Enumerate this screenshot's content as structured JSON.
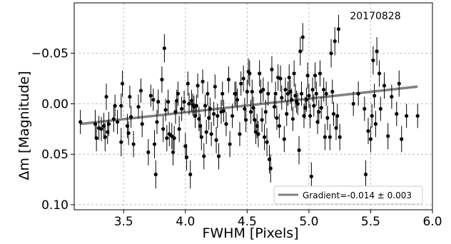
{
  "chart_data": {
    "type": "scatter",
    "xlabel": "FWHM [Pixels]",
    "ylabel": "Δm [Magnitude]",
    "xlim": [
      3.1,
      6.0
    ],
    "ylim": [
      0.105,
      -0.1
    ],
    "y_inverted": true,
    "grid": true,
    "xticks": [
      3.5,
      4.0,
      4.5,
      5.0,
      5.5,
      6.0
    ],
    "xtick_labels": [
      "3.5",
      "4.0",
      "4.5",
      "5.0",
      "5.5",
      "6.0"
    ],
    "yticks": [
      -0.05,
      0.0,
      0.05,
      0.1
    ],
    "ytick_labels": [
      "−0.05",
      "0.00",
      "0.05",
      "0.10"
    ],
    "annotation": "20170828",
    "legend": {
      "placement": "lower-right",
      "entries": [
        {
          "label": "Gradient=-0.014 ± 0.003",
          "color": "#808080"
        }
      ]
    },
    "fit_line": {
      "x": [
        3.15,
        5.88
      ],
      "y": [
        0.02,
        -0.017
      ],
      "color": "#808080"
    },
    "series": [
      {
        "color": "#000000",
        "points": [
          {
            "x": 3.15,
            "y": 0.018,
            "err": 0.012
          },
          {
            "x": 3.27,
            "y": 0.02,
            "err": 0.014
          },
          {
            "x": 3.28,
            "y": 0.034,
            "err": 0.013
          },
          {
            "x": 3.3,
            "y": 0.024,
            "err": 0.012
          },
          {
            "x": 3.32,
            "y": 0.025,
            "err": 0.012
          },
          {
            "x": 3.34,
            "y": 0.022,
            "err": 0.013
          },
          {
            "x": 3.35,
            "y": 0.033,
            "err": 0.014
          },
          {
            "x": 3.36,
            "y": -0.007,
            "err": 0.013
          },
          {
            "x": 3.37,
            "y": 0.028,
            "err": 0.012
          },
          {
            "x": 3.38,
            "y": 0.02,
            "err": 0.012
          },
          {
            "x": 3.42,
            "y": 0.015,
            "err": 0.013
          },
          {
            "x": 3.43,
            "y": 0.002,
            "err": 0.011
          },
          {
            "x": 3.45,
            "y": 0.018,
            "err": 0.012
          },
          {
            "x": 3.48,
            "y": 0.038,
            "err": 0.014
          },
          {
            "x": 3.48,
            "y": 0.002,
            "err": 0.012
          },
          {
            "x": 3.49,
            "y": -0.02,
            "err": 0.013
          },
          {
            "x": 3.53,
            "y": 0.022,
            "err": 0.012
          },
          {
            "x": 3.54,
            "y": 0.029,
            "err": 0.012
          },
          {
            "x": 3.55,
            "y": -0.007,
            "err": 0.011
          },
          {
            "x": 3.56,
            "y": 0.013,
            "err": 0.011
          },
          {
            "x": 3.58,
            "y": 0.04,
            "err": 0.013
          },
          {
            "x": 3.62,
            "y": 0.003,
            "err": 0.012
          },
          {
            "x": 3.64,
            "y": -0.013,
            "err": 0.012
          },
          {
            "x": 3.65,
            "y": 0.02,
            "err": 0.013
          },
          {
            "x": 3.7,
            "y": 0.048,
            "err": 0.013
          },
          {
            "x": 3.72,
            "y": -0.008,
            "err": 0.011
          },
          {
            "x": 3.74,
            "y": -0.004,
            "err": 0.011
          },
          {
            "x": 3.75,
            "y": 0.04,
            "err": 0.014
          },
          {
            "x": 3.76,
            "y": 0.07,
            "err": 0.014
          },
          {
            "x": 3.77,
            "y": 0.018,
            "err": 0.012
          },
          {
            "x": 3.78,
            "y": -0.002,
            "err": 0.012
          },
          {
            "x": 3.81,
            "y": -0.024,
            "err": 0.013
          },
          {
            "x": 3.82,
            "y": 0.025,
            "err": 0.013
          },
          {
            "x": 3.83,
            "y": -0.055,
            "err": 0.014
          },
          {
            "x": 3.84,
            "y": 0.006,
            "err": 0.011
          },
          {
            "x": 3.85,
            "y": 0.034,
            "err": 0.013
          },
          {
            "x": 3.86,
            "y": -0.002,
            "err": 0.012
          },
          {
            "x": 3.87,
            "y": 0.03,
            "err": 0.012
          },
          {
            "x": 3.89,
            "y": 0.032,
            "err": 0.013
          },
          {
            "x": 3.9,
            "y": 0.048,
            "err": 0.013
          },
          {
            "x": 3.91,
            "y": 0.034,
            "err": 0.012
          },
          {
            "x": 3.92,
            "y": 0.008,
            "err": 0.012
          },
          {
            "x": 3.93,
            "y": -0.003,
            "err": 0.011
          },
          {
            "x": 3.94,
            "y": -0.01,
            "err": 0.012
          },
          {
            "x": 3.95,
            "y": 0.025,
            "err": 0.013
          },
          {
            "x": 3.97,
            "y": 0.005,
            "err": 0.012
          },
          {
            "x": 3.99,
            "y": -0.002,
            "err": 0.011
          },
          {
            "x": 4.0,
            "y": 0.042,
            "err": 0.013
          },
          {
            "x": 4.01,
            "y": 0.053,
            "err": 0.013
          },
          {
            "x": 4.02,
            "y": -0.02,
            "err": 0.012
          },
          {
            "x": 4.03,
            "y": 0.0,
            "err": 0.011
          },
          {
            "x": 4.04,
            "y": 0.07,
            "err": 0.014
          },
          {
            "x": 4.05,
            "y": -0.003,
            "err": 0.011
          },
          {
            "x": 4.06,
            "y": 0.001,
            "err": 0.011
          },
          {
            "x": 4.07,
            "y": 0.003,
            "err": 0.011
          },
          {
            "x": 4.08,
            "y": 0.012,
            "err": 0.012
          },
          {
            "x": 4.09,
            "y": 0.002,
            "err": 0.011
          },
          {
            "x": 4.1,
            "y": -0.018,
            "err": 0.012
          },
          {
            "x": 4.11,
            "y": 0.015,
            "err": 0.012
          },
          {
            "x": 4.12,
            "y": 0.022,
            "err": 0.012
          },
          {
            "x": 4.13,
            "y": 0.033,
            "err": 0.013
          },
          {
            "x": 4.14,
            "y": -0.022,
            "err": 0.012
          },
          {
            "x": 4.15,
            "y": 0.052,
            "err": 0.013
          },
          {
            "x": 4.16,
            "y": 0.002,
            "err": 0.011
          },
          {
            "x": 4.17,
            "y": 0.028,
            "err": 0.012
          },
          {
            "x": 4.18,
            "y": -0.01,
            "err": 0.012
          },
          {
            "x": 4.19,
            "y": 0.014,
            "err": 0.012
          },
          {
            "x": 4.2,
            "y": 0.005,
            "err": 0.011
          },
          {
            "x": 4.21,
            "y": 0.03,
            "err": 0.012
          },
          {
            "x": 4.23,
            "y": 0.01,
            "err": 0.012
          },
          {
            "x": 4.24,
            "y": -0.017,
            "err": 0.012
          },
          {
            "x": 4.25,
            "y": 0.036,
            "err": 0.013
          },
          {
            "x": 4.26,
            "y": 0.012,
            "err": 0.012
          },
          {
            "x": 4.27,
            "y": 0.052,
            "err": 0.013
          },
          {
            "x": 4.29,
            "y": 0.008,
            "err": 0.012
          },
          {
            "x": 4.3,
            "y": -0.01,
            "err": 0.012
          },
          {
            "x": 4.31,
            "y": 0.007,
            "err": 0.011
          },
          {
            "x": 4.33,
            "y": 0.02,
            "err": 0.012
          },
          {
            "x": 4.35,
            "y": -0.024,
            "err": 0.013
          },
          {
            "x": 4.36,
            "y": 0.04,
            "err": 0.013
          },
          {
            "x": 4.38,
            "y": 0.012,
            "err": 0.012
          },
          {
            "x": 4.4,
            "y": -0.01,
            "err": 0.012
          },
          {
            "x": 4.41,
            "y": -0.01,
            "err": 0.012
          },
          {
            "x": 4.42,
            "y": -0.004,
            "err": 0.011
          },
          {
            "x": 4.44,
            "y": 0.03,
            "err": 0.012
          },
          {
            "x": 4.45,
            "y": -0.02,
            "err": 0.012
          },
          {
            "x": 4.47,
            "y": -0.025,
            "err": 0.013
          },
          {
            "x": 4.48,
            "y": 0.005,
            "err": 0.011
          },
          {
            "x": 4.49,
            "y": 0.016,
            "err": 0.012
          },
          {
            "x": 4.5,
            "y": -0.012,
            "err": 0.012
          },
          {
            "x": 4.51,
            "y": -0.032,
            "err": 0.013
          },
          {
            "x": 4.52,
            "y": -0.03,
            "err": 0.013
          },
          {
            "x": 4.53,
            "y": 0.008,
            "err": 0.012
          },
          {
            "x": 4.54,
            "y": -0.012,
            "err": 0.012
          },
          {
            "x": 4.55,
            "y": 0.004,
            "err": 0.011
          },
          {
            "x": 4.56,
            "y": 0.016,
            "err": 0.012
          },
          {
            "x": 4.57,
            "y": 0.028,
            "err": 0.012
          },
          {
            "x": 4.58,
            "y": 0.022,
            "err": 0.012
          },
          {
            "x": 4.59,
            "y": 0.03,
            "err": 0.013
          },
          {
            "x": 4.6,
            "y": -0.03,
            "err": 0.013
          },
          {
            "x": 4.61,
            "y": -0.012,
            "err": 0.012
          },
          {
            "x": 4.62,
            "y": 0.016,
            "err": 0.012
          },
          {
            "x": 4.63,
            "y": -0.014,
            "err": 0.012
          },
          {
            "x": 4.64,
            "y": 0.033,
            "err": 0.013
          },
          {
            "x": 4.65,
            "y": 0.008,
            "err": 0.012
          },
          {
            "x": 4.66,
            "y": 0.038,
            "err": 0.014
          },
          {
            "x": 4.67,
            "y": -0.01,
            "err": 0.012
          },
          {
            "x": 4.68,
            "y": 0.055,
            "err": 0.014
          },
          {
            "x": 4.69,
            "y": 0.064,
            "err": 0.014
          },
          {
            "x": 4.7,
            "y": -0.034,
            "err": 0.013
          },
          {
            "x": 4.72,
            "y": 0.003,
            "err": 0.011
          },
          {
            "x": 4.73,
            "y": -0.01,
            "err": 0.012
          },
          {
            "x": 4.74,
            "y": 0.014,
            "err": 0.012
          },
          {
            "x": 4.75,
            "y": -0.026,
            "err": 0.013
          },
          {
            "x": 4.76,
            "y": 0.022,
            "err": 0.012
          },
          {
            "x": 4.77,
            "y": -0.025,
            "err": 0.013
          },
          {
            "x": 4.78,
            "y": -0.006,
            "err": 0.012
          },
          {
            "x": 4.8,
            "y": 0.035,
            "err": 0.013
          },
          {
            "x": 4.81,
            "y": -0.014,
            "err": 0.012
          },
          {
            "x": 4.82,
            "y": 0.01,
            "err": 0.012
          },
          {
            "x": 4.83,
            "y": -0.01,
            "err": 0.012
          },
          {
            "x": 4.84,
            "y": -0.026,
            "err": 0.013
          },
          {
            "x": 4.85,
            "y": -0.012,
            "err": 0.012
          },
          {
            "x": 4.86,
            "y": -0.004,
            "err": 0.011
          },
          {
            "x": 4.87,
            "y": 0.015,
            "err": 0.012
          },
          {
            "x": 4.88,
            "y": -0.03,
            "err": 0.013
          },
          {
            "x": 4.89,
            "y": -0.008,
            "err": 0.012
          },
          {
            "x": 4.9,
            "y": -0.002,
            "err": 0.011
          },
          {
            "x": 4.91,
            "y": 0.0,
            "err": 0.011
          },
          {
            "x": 4.92,
            "y": 0.046,
            "err": 0.014
          },
          {
            "x": 4.93,
            "y": -0.052,
            "err": 0.014
          },
          {
            "x": 4.94,
            "y": -0.01,
            "err": 0.012
          },
          {
            "x": 4.95,
            "y": -0.066,
            "err": 0.014
          },
          {
            "x": 4.96,
            "y": 0.012,
            "err": 0.012
          },
          {
            "x": 4.97,
            "y": 0.004,
            "err": 0.011
          },
          {
            "x": 4.98,
            "y": -0.004,
            "err": 0.012
          },
          {
            "x": 4.99,
            "y": -0.028,
            "err": 0.013
          },
          {
            "x": 5.0,
            "y": -0.008,
            "err": 0.012
          },
          {
            "x": 5.01,
            "y": 0.012,
            "err": 0.012
          },
          {
            "x": 5.02,
            "y": 0.072,
            "err": 0.014
          },
          {
            "x": 5.03,
            "y": -0.014,
            "err": 0.012
          },
          {
            "x": 5.04,
            "y": 0.002,
            "err": 0.011
          },
          {
            "x": 5.05,
            "y": -0.028,
            "err": 0.013
          },
          {
            "x": 5.06,
            "y": -0.01,
            "err": 0.012
          },
          {
            "x": 5.07,
            "y": 0.018,
            "err": 0.012
          },
          {
            "x": 5.08,
            "y": 0.008,
            "err": 0.012
          },
          {
            "x": 5.09,
            "y": -0.03,
            "err": 0.013
          },
          {
            "x": 5.1,
            "y": 0.004,
            "err": 0.011
          },
          {
            "x": 5.12,
            "y": -0.014,
            "err": 0.012
          },
          {
            "x": 5.13,
            "y": 0.033,
            "err": 0.013
          },
          {
            "x": 5.14,
            "y": -0.01,
            "err": 0.012
          },
          {
            "x": 5.15,
            "y": 0.014,
            "err": 0.012
          },
          {
            "x": 5.17,
            "y": 0.033,
            "err": 0.013
          },
          {
            "x": 5.18,
            "y": -0.05,
            "err": 0.014
          },
          {
            "x": 5.19,
            "y": -0.012,
            "err": 0.012
          },
          {
            "x": 5.2,
            "y": 0.01,
            "err": 0.012
          },
          {
            "x": 5.21,
            "y": -0.062,
            "err": 0.014
          },
          {
            "x": 5.22,
            "y": 0.024,
            "err": 0.012
          },
          {
            "x": 5.23,
            "y": 0.012,
            "err": 0.012
          },
          {
            "x": 5.24,
            "y": -0.074,
            "err": 0.014
          },
          {
            "x": 5.25,
            "y": 0.033,
            "err": 0.013
          },
          {
            "x": 5.36,
            "y": 0.0,
            "err": 0.012
          },
          {
            "x": 5.4,
            "y": -0.01,
            "err": 0.012
          },
          {
            "x": 5.45,
            "y": 0.005,
            "err": 0.012
          },
          {
            "x": 5.46,
            "y": 0.07,
            "err": 0.014
          },
          {
            "x": 5.48,
            "y": 0.027,
            "err": 0.013
          },
          {
            "x": 5.5,
            "y": 0.035,
            "err": 0.013
          },
          {
            "x": 5.51,
            "y": 0.012,
            "err": 0.012
          },
          {
            "x": 5.52,
            "y": -0.043,
            "err": 0.014
          },
          {
            "x": 5.53,
            "y": -0.008,
            "err": 0.012
          },
          {
            "x": 5.54,
            "y": 0.02,
            "err": 0.013
          },
          {
            "x": 5.55,
            "y": -0.052,
            "err": 0.014
          },
          {
            "x": 5.57,
            "y": -0.03,
            "err": 0.013
          },
          {
            "x": 5.58,
            "y": 0.005,
            "err": 0.012
          },
          {
            "x": 5.61,
            "y": -0.018,
            "err": 0.013
          },
          {
            "x": 5.64,
            "y": 0.032,
            "err": 0.013
          },
          {
            "x": 5.67,
            "y": -0.007,
            "err": 0.012
          },
          {
            "x": 5.71,
            "y": 0.01,
            "err": 0.012
          },
          {
            "x": 5.73,
            "y": -0.02,
            "err": 0.013
          },
          {
            "x": 5.75,
            "y": 0.035,
            "err": 0.013
          },
          {
            "x": 5.79,
            "y": 0.012,
            "err": 0.012
          },
          {
            "x": 5.88,
            "y": 0.012,
            "err": 0.012
          }
        ]
      }
    ]
  }
}
